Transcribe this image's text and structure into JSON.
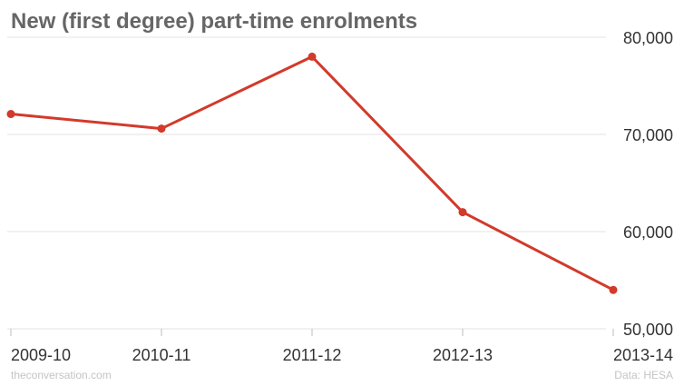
{
  "chart_data": {
    "type": "line",
    "title": "New (first degree) part-time enrolments",
    "categories": [
      "2009-10",
      "2010-11",
      "2011-12",
      "2012-13",
      "2013-14"
    ],
    "series": [
      {
        "values": [
          72100,
          70600,
          78000,
          62000,
          54000
        ]
      }
    ],
    "y_ticks": [
      50000,
      60000,
      70000,
      80000
    ],
    "y_tick_labels": [
      "50,000",
      "60,000",
      "70,000",
      "80,000"
    ],
    "ylim": [
      50000,
      80000
    ],
    "y_axis_position": "right",
    "grid": true,
    "legend": "none"
  },
  "footer": {
    "source_site": "theconversation.com",
    "data_credit": "Data: HESA"
  },
  "colors": {
    "series_line": "#d23a2b",
    "series_point": "#d23a2b",
    "title": "#666666",
    "grid": "#e3e3e3",
    "axis_label": "#333333",
    "footer": "#c4c4c4"
  }
}
